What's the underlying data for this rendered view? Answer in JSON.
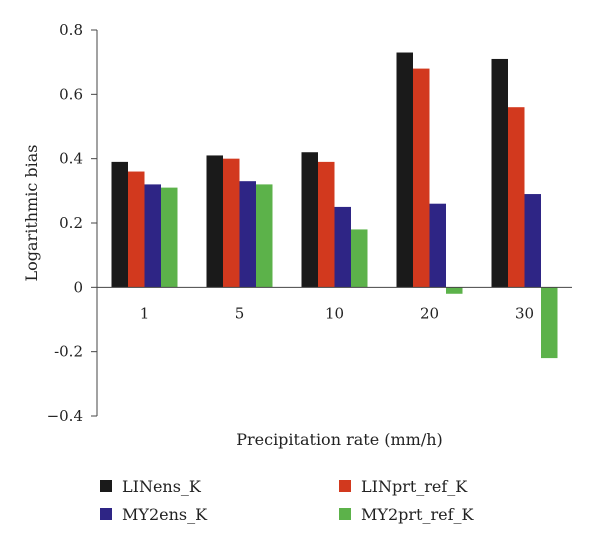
{
  "chart_data": {
    "type": "bar",
    "title": "",
    "xlabel": "Precipitation rate (mm/h)",
    "ylabel": "Logarithmic bias",
    "categories": [
      "1",
      "5",
      "10",
      "20",
      "30"
    ],
    "ylim": [
      -0.4,
      0.8
    ],
    "yticks": [
      0.8,
      0.6,
      0.4,
      0.2,
      0,
      -0.2,
      -0.4
    ],
    "ytick_labels": [
      "0.8",
      "0.6",
      "0.4",
      "0.2",
      "0",
      "-0.2",
      "−0.4"
    ],
    "grid": false,
    "legend_position": "bottom",
    "series": [
      {
        "name": "LINens_K",
        "color": "#1a1a1a",
        "values": [
          0.39,
          0.41,
          0.42,
          0.73,
          0.71
        ]
      },
      {
        "name": "LINprt_ref_K",
        "color": "#d2391e",
        "values": [
          0.36,
          0.4,
          0.39,
          0.68,
          0.56
        ]
      },
      {
        "name": "MY2ens_K",
        "color": "#2e2585",
        "values": [
          0.32,
          0.33,
          0.25,
          0.26,
          0.29
        ]
      },
      {
        "name": "MY2prt_ref_K",
        "color": "#5cb24a",
        "values": [
          0.31,
          0.32,
          0.18,
          -0.02,
          -0.22
        ]
      }
    ]
  }
}
